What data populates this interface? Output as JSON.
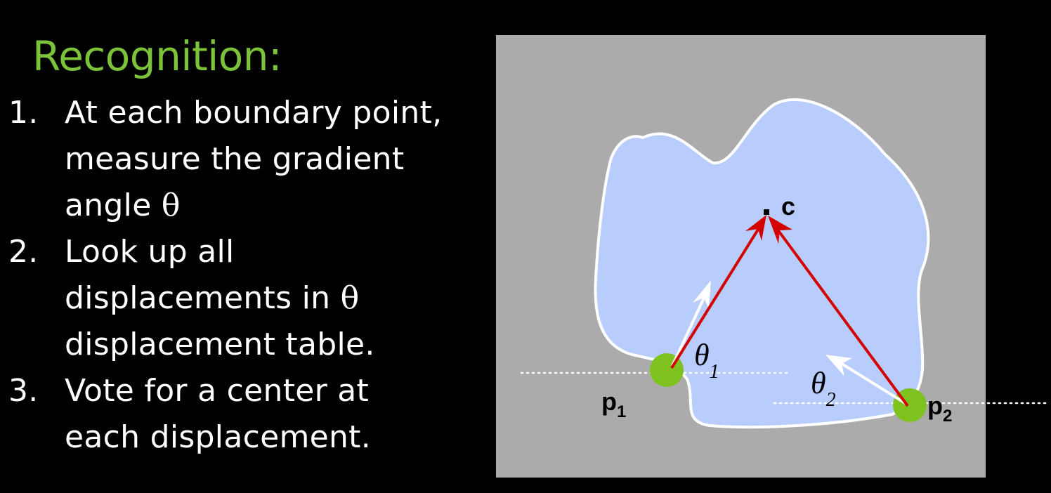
{
  "title": "Recognition:",
  "steps": [
    {
      "number": "1.",
      "lines": [
        "At each boundary point,",
        "measure the gradient"
      ],
      "last_line": "angle",
      "symbol": "θ"
    },
    {
      "number": "2.",
      "lines": [
        "Look up all"
      ],
      "last_line": "displacements in",
      "symbol": "θ",
      "extra_line": "displacement table."
    },
    {
      "number": "3.",
      "lines": [
        "Vote for a center at",
        "each displacement."
      ]
    }
  ],
  "figure": {
    "labels": {
      "center": "c",
      "point_1": "p",
      "point_1_sub": "1",
      "point_2": "p",
      "point_2_sub": "2",
      "angle_1": "θ",
      "angle_1_sub": "1",
      "angle_2": "θ",
      "angle_2_sub": "2"
    },
    "colors": {
      "background": "#000000",
      "panel": "#ababab",
      "shape_fill": "#b8cdfb",
      "shape_stroke": "#ffffff",
      "displacement_arrow": "#d40000",
      "gradient_arrow": "#ffffff",
      "boundary_point": "#7dc21e",
      "title": "#7cc33a"
    }
  }
}
